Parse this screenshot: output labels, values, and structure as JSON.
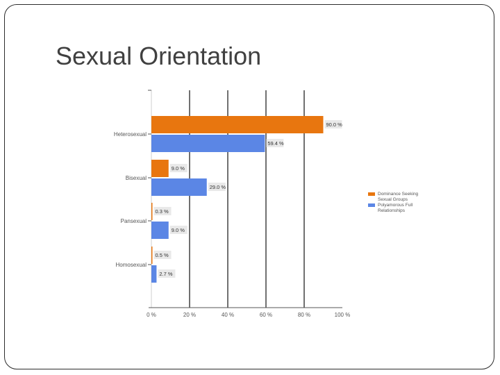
{
  "slide": {
    "title": "Sexual Orientation"
  },
  "chart_data": {
    "type": "bar",
    "orientation": "horizontal",
    "categories": [
      "Heterosexual",
      "Bisexual",
      "Pansexual",
      "Homosexual"
    ],
    "series": [
      {
        "name": "Dominance Seeking Sexual Groups",
        "values": [
          90.0,
          9.0,
          0.3,
          0.5
        ],
        "color": "#e8760f"
      },
      {
        "name": "Polyamorous Full Relationships",
        "values": [
          59.4,
          29.0,
          9.0,
          2.7
        ],
        "color": "#5b86e5"
      }
    ],
    "xlim": [
      0,
      100
    ],
    "xticks": [
      "0 %",
      "20 %",
      "40 %",
      "60 %",
      "80 %",
      "100 %"
    ],
    "value_labels": [
      [
        "90.0 %",
        "9.0 %",
        "0.3 %",
        "0.5 %"
      ],
      [
        "59.4 %",
        "29.0 %",
        "9.0 %",
        "2.7 %"
      ]
    ],
    "grid": true,
    "legend": "right"
  }
}
